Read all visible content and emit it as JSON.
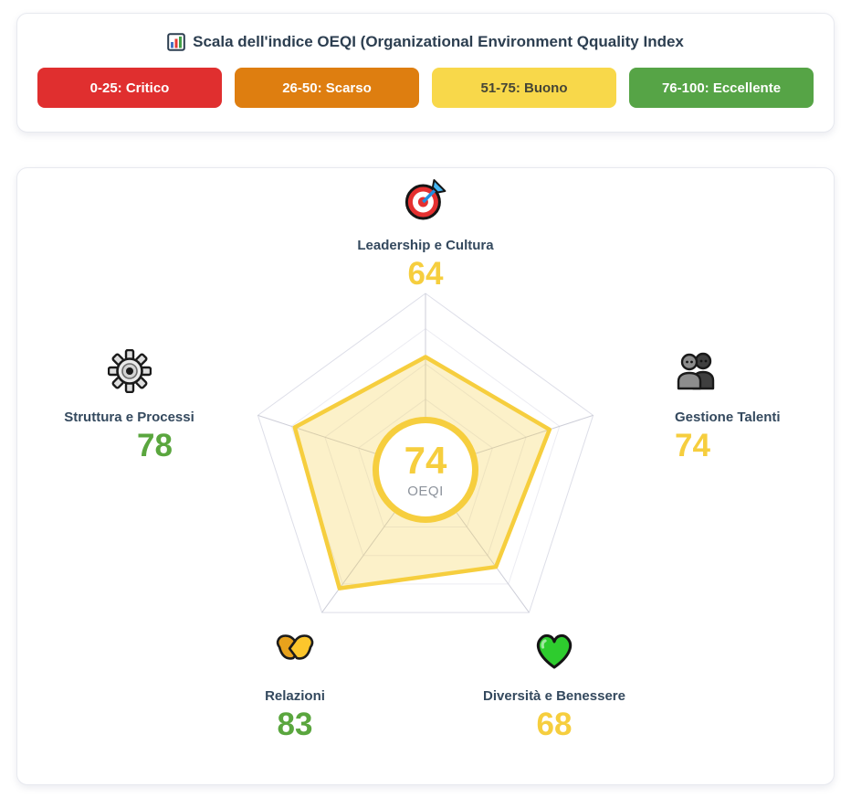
{
  "scale_card": {
    "icon": "bar-chart-icon",
    "title": "Scala dell'indice OEQI (Organizational Environment Qquality Index",
    "badges": [
      {
        "label": "0-25: Critico",
        "bg": "#e02f2f",
        "text_color": "#ffffff"
      },
      {
        "label": "26-50: Scarso",
        "bg": "#de7e10",
        "text_color": "#ffffff"
      },
      {
        "label": "51-75: Buono",
        "bg": "#f8d84a",
        "text_color": "#454536"
      },
      {
        "label": "76-100: Eccellente",
        "bg": "#56a446",
        "text_color": "#ffffff"
      }
    ]
  },
  "chart_data": {
    "type": "radar",
    "max": 100,
    "grid_levels": [
      20,
      40,
      60,
      80,
      100
    ],
    "series_color": "#f6ce3e",
    "fill_color": "rgba(246,206,62,0.28)",
    "grid_color": "#ececf2",
    "outer_grid_color": "#dddee8",
    "spoke_color": "#cdced8",
    "axes": [
      {
        "label": "Leadership e Cultura",
        "value": 64,
        "icon": "target-icon",
        "value_color": "#f6ce3e"
      },
      {
        "label": "Gestione Talenti",
        "value": 74,
        "icon": "people-icon",
        "value_color": "#f6ce3e"
      },
      {
        "label": "Diversità e Benessere",
        "value": 68,
        "icon": "green-heart-icon",
        "value_color": "#f6ce3e"
      },
      {
        "label": "Relazioni",
        "value": 83,
        "icon": "handshake-icon",
        "value_color": "#5aa63e"
      },
      {
        "label": "Struttura e Processi",
        "value": 78,
        "icon": "gear-icon",
        "value_color": "#5aa63e"
      }
    ],
    "center": {
      "value": "74",
      "label": "OEQI"
    }
  }
}
